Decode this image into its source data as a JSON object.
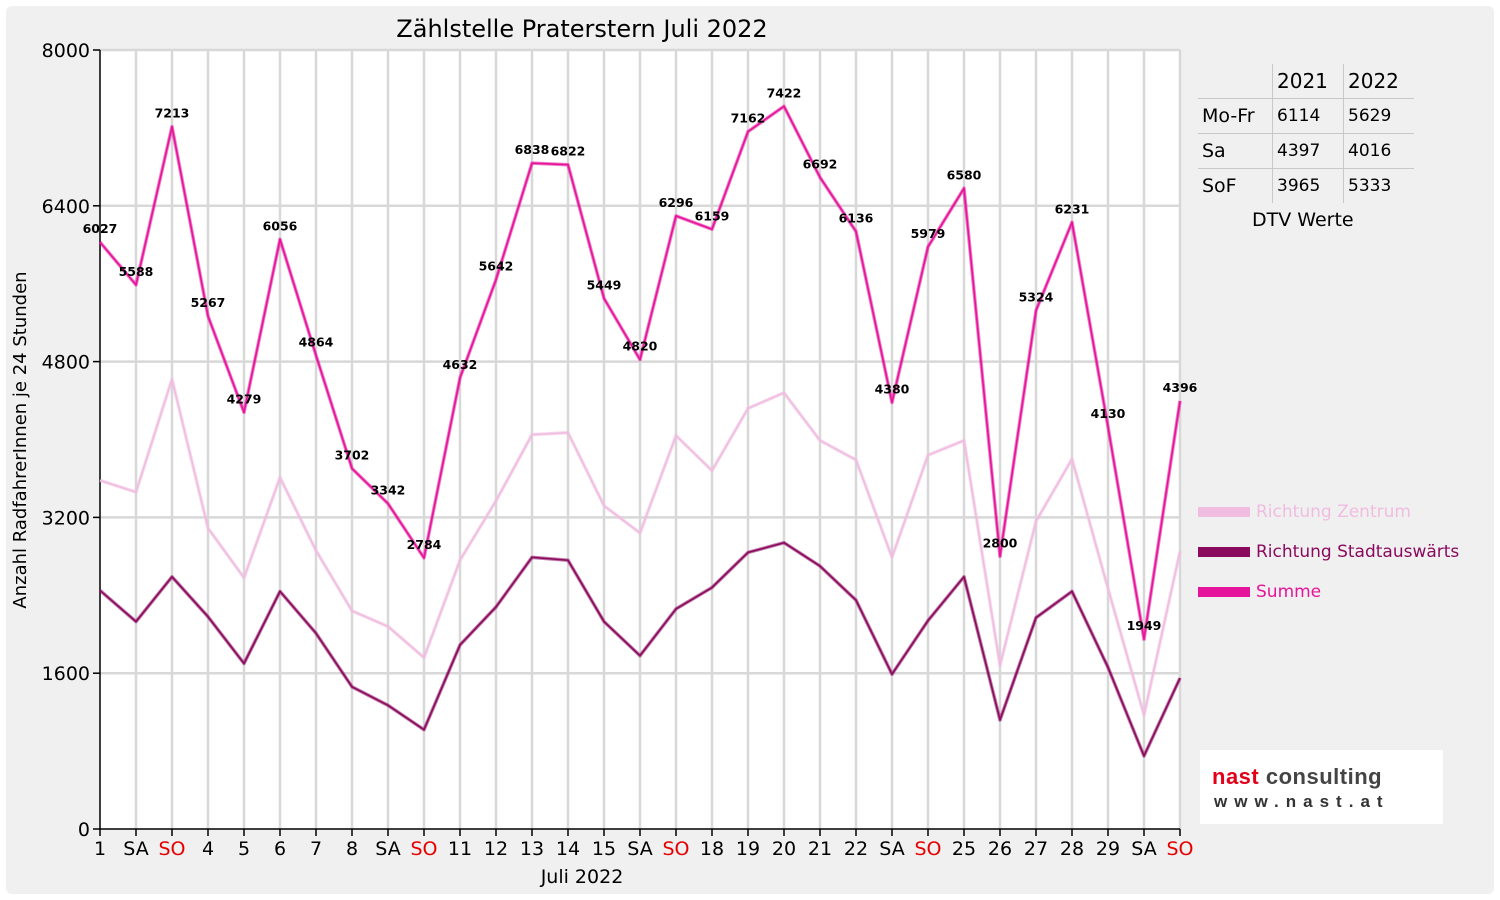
{
  "chart_data": {
    "type": "line",
    "title": "Zählstelle Praterstern Juli 2022",
    "xlabel": "Juli 2022",
    "ylabel": "Anzahl RadfahrerInnen je 24 Stunden",
    "ylim": [
      0,
      8000
    ],
    "yticks": [
      "0",
      "1600",
      "3200",
      "4800",
      "6400",
      "8000"
    ],
    "grid": true,
    "legend_position": "right",
    "categories": [
      "1",
      "SA",
      "SO",
      "4",
      "5",
      "6",
      "7",
      "8",
      "SA",
      "SO",
      "11",
      "12",
      "13",
      "14",
      "15",
      "SA",
      "SO",
      "18",
      "19",
      "20",
      "21",
      "22",
      "SA",
      "SO",
      "25",
      "26",
      "27",
      "28",
      "29",
      "SA",
      "SO"
    ],
    "weekend_color": "#e60000",
    "weekday_color": "#000000",
    "series": [
      {
        "name": "Richtung Zentrum",
        "color": "#f0bde0",
        "values": [
          3580,
          3460,
          4620,
          3090,
          2580,
          3610,
          2860,
          2240,
          2080,
          1760,
          2760,
          3370,
          4050,
          4070,
          3320,
          3040,
          4040,
          3680,
          4320,
          4480,
          3990,
          3790,
          2790,
          3840,
          3990,
          1680,
          3160,
          3800,
          2470,
          1170,
          2850
        ]
      },
      {
        "name": "Richtung Stadtauswärts",
        "color": "#8b0a5e",
        "values": [
          2450,
          2130,
          2590,
          2180,
          1700,
          2440,
          2010,
          1460,
          1270,
          1020,
          1890,
          2280,
          2790,
          2760,
          2130,
          1780,
          2260,
          2480,
          2840,
          2940,
          2700,
          2350,
          1590,
          2140,
          2590,
          1120,
          2170,
          2440,
          1660,
          750,
          1550
        ]
      },
      {
        "name": "Summe",
        "color": "#e6139b",
        "values": [
          6027,
          5588,
          7213,
          5267,
          4279,
          6056,
          4864,
          3702,
          3342,
          2784,
          4632,
          5642,
          6838,
          6822,
          5449,
          4820,
          6296,
          6159,
          7162,
          7422,
          6692,
          6136,
          4380,
          5979,
          6580,
          2800,
          5324,
          6231,
          4130,
          1949,
          4396
        ],
        "labels": [
          "6027",
          "5588",
          "7213",
          "5267",
          "4279",
          "6056",
          "4864",
          "3702",
          "3342",
          "2784",
          "4632",
          "5642",
          "6838",
          "6822",
          "5449",
          "4820",
          "6296",
          "6159",
          "7162",
          "7422",
          "6692",
          "6136",
          "4380",
          "5979",
          "6580",
          "2800",
          "5324",
          "6231",
          "4130",
          "1949",
          "4396"
        ]
      }
    ]
  },
  "dtv_table": {
    "headers": [
      "",
      "2021",
      "2022"
    ],
    "rows": [
      {
        "label": "Mo-Fr",
        "y2021": "6114",
        "y2022": "5629"
      },
      {
        "label": "Sa",
        "y2021": "4397",
        "y2022": "4016"
      },
      {
        "label": "SoF",
        "y2021": "3965",
        "y2022": "5333"
      }
    ],
    "caption": "DTV Werte"
  },
  "logo": {
    "name_part1": "nast",
    "name_part2": " consulting",
    "url": "www.nast.at"
  }
}
